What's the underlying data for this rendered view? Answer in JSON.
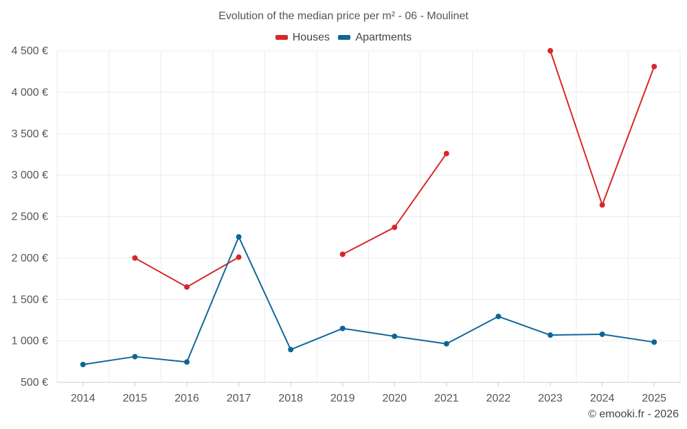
{
  "chart_data": {
    "type": "line",
    "title": "Evolution of the median price per m² - 06 - Moulinet",
    "categories": [
      "2014",
      "2015",
      "2016",
      "2017",
      "2018",
      "2019",
      "2020",
      "2021",
      "2022",
      "2023",
      "2024",
      "2025"
    ],
    "y_tick_labels": [
      "500 €",
      "1 000 €",
      "1 500 €",
      "2 000 €",
      "2 500 €",
      "3 000 €",
      "3 500 €",
      "4 000 €",
      "4 500 €"
    ],
    "y_ticks": [
      500,
      1000,
      1500,
      2000,
      2500,
      3000,
      3500,
      4000,
      4500
    ],
    "ylim": [
      500,
      4500
    ],
    "xlabel": "",
    "ylabel": "",
    "grid": true,
    "legend_position": "top-center",
    "series": [
      {
        "name": "Houses",
        "color": "#d62728",
        "values": [
          null,
          2000,
          1650,
          2010,
          null,
          2045,
          2370,
          3260,
          null,
          4500,
          2640,
          4310
        ]
      },
      {
        "name": "Apartments",
        "color": "#0e6698",
        "values": [
          715,
          810,
          745,
          2255,
          895,
          1150,
          1055,
          965,
          1295,
          1070,
          1080,
          985
        ]
      }
    ]
  },
  "credit": "© emooki.fr - 2026"
}
